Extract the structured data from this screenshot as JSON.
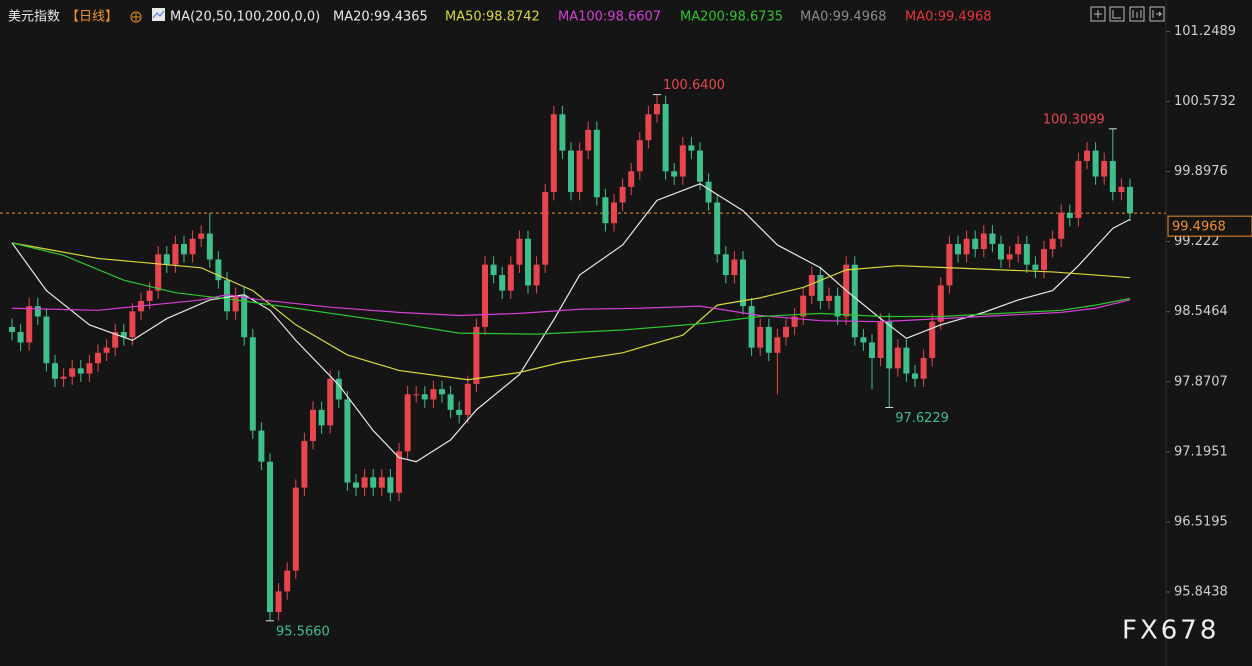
{
  "chart_data": {
    "type": "candlestick",
    "title": "美元指数",
    "period": "【日线】",
    "indicator": "MA(20,50,100,200,0,0)",
    "watermark": "FX678",
    "ylim": [
      95.13,
      101.34
    ],
    "yticks": [
      101.2489,
      100.5732,
      99.8976,
      99.222,
      98.5464,
      97.8707,
      97.1951,
      96.5195,
      95.8438
    ],
    "up_color": "#e8464f",
    "down_color": "#3fbf8c",
    "ohlc": {
      "open": [
        98.4,
        98.35,
        98.25,
        98.6,
        98.5,
        98.05,
        97.9,
        97.92,
        98.0,
        97.95,
        98.05,
        98.15,
        98.2,
        98.35,
        98.3,
        98.55,
        98.65,
        98.75,
        99.1,
        99.0,
        99.2,
        99.1,
        99.25,
        99.3,
        99.05,
        98.85,
        98.55,
        98.7,
        98.3,
        97.4,
        97.1,
        95.65,
        95.85,
        96.05,
        96.85,
        97.3,
        97.6,
        97.45,
        97.9,
        97.7,
        96.9,
        96.85,
        96.95,
        96.85,
        96.95,
        96.8,
        97.2,
        97.75,
        97.75,
        97.7,
        97.8,
        97.75,
        97.6,
        97.55,
        97.85,
        98.4,
        99.0,
        98.9,
        98.75,
        99.0,
        99.25,
        98.8,
        99.0,
        99.7,
        100.45,
        100.1,
        99.7,
        100.1,
        100.3,
        99.65,
        99.4,
        99.6,
        99.75,
        99.9,
        100.2,
        100.45,
        100.55,
        99.9,
        99.85,
        100.15,
        100.1,
        99.8,
        99.6,
        99.1,
        98.9,
        99.05,
        98.6,
        98.2,
        98.4,
        98.15,
        98.3,
        98.4,
        98.5,
        98.7,
        98.9,
        98.65,
        98.7,
        98.5,
        99.0,
        98.3,
        98.25,
        98.1,
        98.45,
        98.0,
        98.2,
        97.95,
        97.9,
        98.1,
        98.45,
        98.8,
        99.2,
        99.1,
        99.25,
        99.15,
        99.3,
        99.2,
        99.05,
        99.1,
        99.2,
        99.0,
        98.95,
        99.15,
        99.25,
        99.5,
        99.45,
        100.0,
        100.1,
        99.85,
        100.0,
        99.7,
        99.75
      ],
      "high": [
        98.48,
        98.43,
        98.68,
        98.68,
        98.58,
        98.13,
        98.0,
        98.08,
        98.08,
        98.13,
        98.23,
        98.28,
        98.43,
        98.43,
        98.63,
        98.73,
        98.83,
        99.18,
        99.18,
        99.28,
        99.28,
        99.33,
        99.38,
        99.5,
        99.13,
        98.93,
        98.78,
        98.78,
        98.38,
        97.48,
        97.18,
        95.93,
        96.13,
        96.93,
        97.38,
        97.68,
        97.68,
        97.98,
        97.98,
        97.78,
        96.98,
        97.03,
        97.03,
        97.03,
        97.03,
        97.28,
        97.83,
        97.83,
        97.83,
        97.88,
        97.88,
        97.83,
        97.68,
        97.93,
        98.48,
        99.08,
        99.08,
        98.98,
        99.08,
        99.33,
        99.33,
        99.08,
        99.78,
        100.53,
        100.53,
        100.18,
        100.18,
        100.38,
        100.38,
        99.73,
        99.68,
        99.83,
        99.98,
        100.28,
        100.53,
        100.64,
        100.63,
        99.98,
        100.23,
        100.23,
        100.18,
        99.88,
        99.68,
        99.18,
        99.13,
        99.13,
        98.68,
        98.48,
        98.48,
        98.38,
        98.48,
        98.58,
        98.78,
        98.98,
        98.98,
        98.78,
        98.78,
        99.08,
        99.08,
        98.38,
        98.33,
        98.53,
        98.53,
        98.28,
        98.28,
        98.03,
        98.18,
        98.53,
        98.88,
        99.28,
        99.28,
        99.33,
        99.33,
        99.38,
        99.38,
        99.28,
        99.18,
        99.28,
        99.28,
        99.08,
        99.23,
        99.33,
        99.58,
        99.58,
        100.08,
        100.18,
        100.18,
        100.08,
        100.3099,
        99.83,
        99.83
      ],
      "low": [
        98.27,
        98.17,
        98.17,
        98.42,
        97.97,
        97.82,
        97.82,
        97.84,
        97.87,
        97.87,
        97.97,
        98.07,
        98.12,
        98.22,
        98.22,
        98.47,
        98.57,
        98.67,
        98.92,
        98.92,
        99.02,
        99.02,
        99.17,
        98.97,
        98.77,
        98.47,
        98.47,
        98.22,
        97.32,
        97.02,
        95.566,
        95.57,
        95.77,
        95.97,
        96.77,
        97.22,
        97.37,
        97.37,
        97.62,
        96.82,
        96.77,
        96.77,
        96.77,
        96.77,
        96.72,
        96.72,
        97.12,
        97.67,
        97.62,
        97.62,
        97.67,
        97.52,
        97.47,
        97.47,
        97.77,
        98.32,
        98.82,
        98.67,
        98.67,
        98.92,
        98.72,
        98.72,
        98.92,
        99.62,
        100.02,
        99.62,
        99.62,
        100.02,
        99.57,
        99.32,
        99.32,
        99.52,
        99.67,
        99.82,
        100.12,
        100.37,
        99.82,
        99.77,
        99.77,
        100.02,
        99.72,
        99.52,
        99.02,
        98.82,
        98.82,
        98.52,
        98.12,
        98.12,
        98.07,
        97.75,
        98.22,
        98.32,
        98.42,
        98.62,
        98.57,
        98.57,
        98.42,
        98.42,
        98.22,
        98.17,
        97.8,
        98.02,
        97.6229,
        97.92,
        97.87,
        97.82,
        97.82,
        98.02,
        98.37,
        98.72,
        99.02,
        99.02,
        99.07,
        99.07,
        99.12,
        98.97,
        98.97,
        99.02,
        98.92,
        98.87,
        98.87,
        99.07,
        99.17,
        99.37,
        99.37,
        99.92,
        99.77,
        99.77,
        99.62,
        99.62,
        99.42
      ],
      "close": [
        98.35,
        98.25,
        98.6,
        98.5,
        98.05,
        97.9,
        97.92,
        98.0,
        97.95,
        98.05,
        98.15,
        98.2,
        98.35,
        98.3,
        98.55,
        98.65,
        98.75,
        99.1,
        99.0,
        99.2,
        99.1,
        99.25,
        99.3,
        99.05,
        98.85,
        98.55,
        98.7,
        98.3,
        97.4,
        97.1,
        95.65,
        95.85,
        96.05,
        96.85,
        97.3,
        97.6,
        97.45,
        97.9,
        97.7,
        96.9,
        96.85,
        96.95,
        96.85,
        96.95,
        96.8,
        97.2,
        97.75,
        97.75,
        97.7,
        97.8,
        97.75,
        97.6,
        97.55,
        97.85,
        98.4,
        99.0,
        98.9,
        98.75,
        99.0,
        99.25,
        98.8,
        99.0,
        99.7,
        100.45,
        100.1,
        99.7,
        100.1,
        100.3,
        99.65,
        99.4,
        99.6,
        99.75,
        99.9,
        100.2,
        100.45,
        100.55,
        99.9,
        99.85,
        100.15,
        100.1,
        99.8,
        99.6,
        99.1,
        98.9,
        99.05,
        98.6,
        98.2,
        98.4,
        98.15,
        98.3,
        98.4,
        98.5,
        98.7,
        98.9,
        98.65,
        98.7,
        98.5,
        99.0,
        98.3,
        98.25,
        98.1,
        98.45,
        98.0,
        98.2,
        97.95,
        97.9,
        98.1,
        98.45,
        98.8,
        99.2,
        99.1,
        99.25,
        99.15,
        99.3,
        99.2,
        99.05,
        99.1,
        99.2,
        99.0,
        98.95,
        99.15,
        99.25,
        99.5,
        99.45,
        100.0,
        100.1,
        99.85,
        100.0,
        99.7,
        99.75,
        99.4968
      ]
    },
    "series": [
      {
        "name": "MA20:99.4365",
        "color": "#e8e8e8",
        "x": [
          0,
          4,
          9,
          14,
          18,
          23,
          27,
          30,
          33,
          38,
          42,
          45,
          47,
          51,
          54,
          59,
          63,
          66,
          71,
          75,
          80,
          85,
          89,
          94,
          97,
          101,
          104,
          108,
          113,
          117,
          121,
          124,
          128,
          130
        ],
        "values": [
          99.21,
          98.75,
          98.42,
          98.27,
          98.48,
          98.66,
          98.71,
          98.56,
          98.27,
          97.84,
          97.4,
          97.14,
          97.1,
          97.31,
          97.6,
          97.94,
          98.47,
          98.9,
          99.19,
          99.62,
          99.78,
          99.52,
          99.19,
          98.97,
          98.75,
          98.48,
          98.29,
          98.42,
          98.54,
          98.66,
          98.75,
          98.99,
          99.35,
          99.4365
        ]
      },
      {
        "name": "MA50:98.8742",
        "color": "#d8d83a",
        "x": [
          0,
          10,
          22,
          28,
          33,
          39,
          45,
          53,
          59,
          64,
          71,
          78,
          82,
          87,
          92,
          97,
          103,
          109,
          115,
          121,
          126,
          130
        ],
        "values": [
          99.21,
          99.06,
          98.97,
          98.75,
          98.42,
          98.13,
          97.98,
          97.89,
          97.96,
          98.06,
          98.15,
          98.32,
          98.61,
          98.68,
          98.78,
          98.95,
          98.99,
          98.97,
          98.95,
          98.93,
          98.9,
          98.8742
        ]
      },
      {
        "name": "MA100:98.6607",
        "color": "#d63fd6",
        "x": [
          0,
          10,
          22,
          25,
          29,
          37,
          45,
          52,
          59,
          66,
          73,
          80,
          87,
          94,
          101,
          108,
          115,
          122,
          126,
          130
        ],
        "values": [
          98.58,
          98.56,
          98.66,
          98.71,
          98.66,
          98.59,
          98.54,
          98.51,
          98.53,
          98.57,
          98.58,
          98.6,
          98.51,
          98.46,
          98.45,
          98.48,
          98.51,
          98.54,
          98.58,
          98.6607
        ]
      },
      {
        "name": "MA200:98.6735",
        "color": "#2fc52f",
        "x": [
          0,
          6,
          13,
          19,
          26,
          33,
          43,
          52,
          61,
          71,
          80,
          87,
          94,
          101,
          108,
          115,
          122,
          126,
          130
        ],
        "values": [
          99.21,
          99.09,
          98.85,
          98.73,
          98.66,
          98.58,
          98.46,
          98.34,
          98.33,
          98.37,
          98.43,
          98.5,
          98.53,
          98.5,
          98.5,
          98.53,
          98.56,
          98.61,
          98.6735
        ]
      }
    ],
    "extra_legend": [
      {
        "label": "MA0:99.4968",
        "color": "#8a8a8a"
      },
      {
        "label": "MA0:99.4968",
        "color": "#e8333a"
      }
    ],
    "annotations": [
      {
        "index": 75,
        "value": 100.64,
        "label": "100.6400"
      },
      {
        "index": 128,
        "value": 100.3099,
        "label": "100.3099"
      },
      {
        "index": 102,
        "value": 97.6229,
        "label": "97.6229"
      },
      {
        "index": 30,
        "value": 95.566,
        "label": "95.5660"
      }
    ],
    "last_price": {
      "value": 99.4968,
      "color": "#f0902a"
    }
  }
}
